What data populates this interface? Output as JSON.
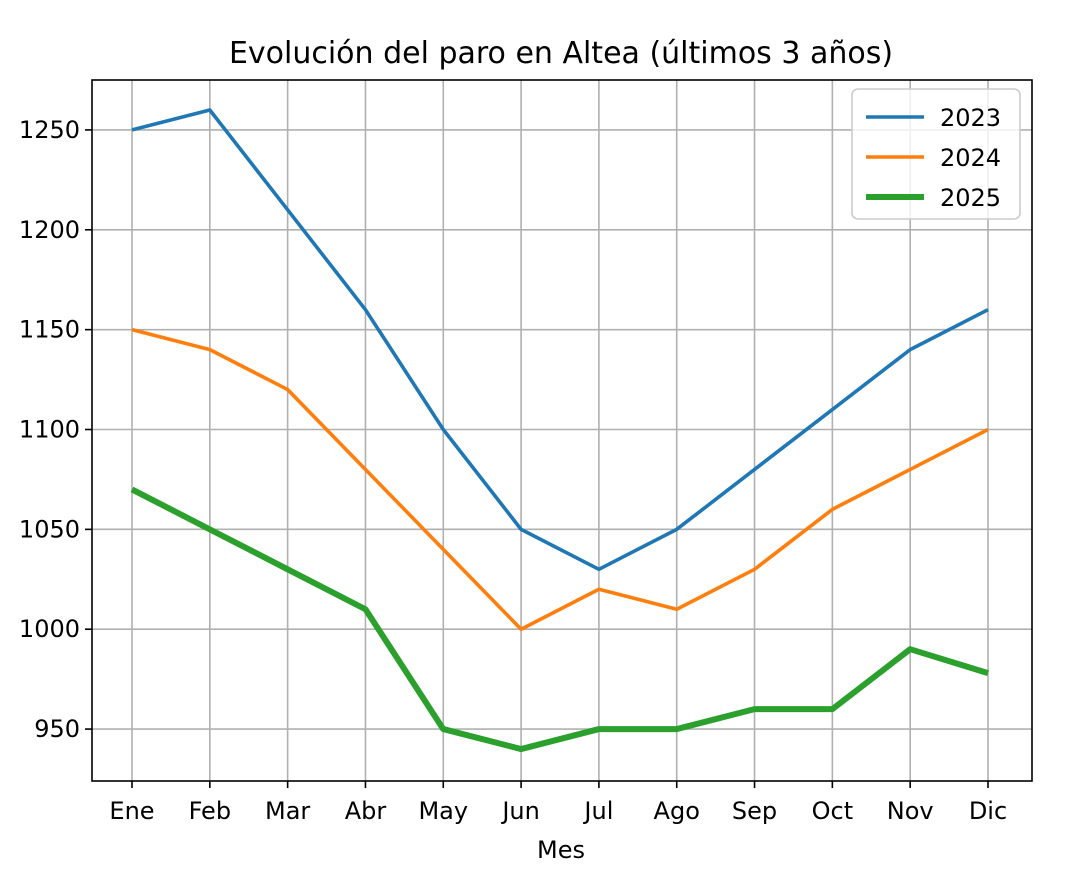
{
  "chart_data": {
    "type": "line",
    "title": "Evolución del paro en Altea (últimos 3 años)",
    "xlabel": "Mes",
    "ylabel": "",
    "categories": [
      "Ene",
      "Feb",
      "Mar",
      "Abr",
      "May",
      "Jun",
      "Jul",
      "Ago",
      "Sep",
      "Oct",
      "Nov",
      "Dic"
    ],
    "yticks": [
      950,
      1000,
      1050,
      1100,
      1150,
      1200,
      1250
    ],
    "ylim": [
      924,
      1275
    ],
    "grid": true,
    "legend_position": "upper right",
    "series": [
      {
        "name": "2023",
        "color": "#1f77b4",
        "values": [
          1250,
          1260,
          1210,
          1160,
          1100,
          1050,
          1030,
          1050,
          1080,
          1110,
          1140,
          1160
        ]
      },
      {
        "name": "2024",
        "color": "#ff7f0e",
        "values": [
          1150,
          1140,
          1120,
          1080,
          1040,
          1000,
          1020,
          1010,
          1030,
          1060,
          1080,
          1100
        ]
      },
      {
        "name": "2025",
        "color": "#2ca02c",
        "values": [
          1070,
          1050,
          1030,
          1010,
          950,
          940,
          950,
          950,
          960,
          960,
          990,
          978
        ]
      }
    ]
  }
}
